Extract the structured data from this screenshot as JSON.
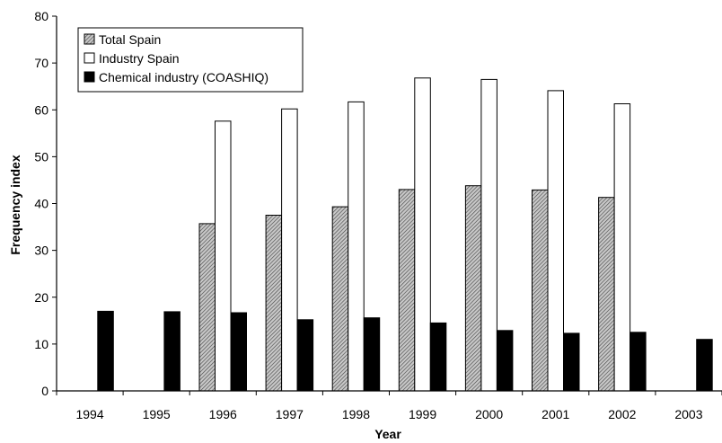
{
  "chart_data": {
    "type": "bar",
    "categories": [
      "1994",
      "1995",
      "1996",
      "1997",
      "1998",
      "1999",
      "2000",
      "2001",
      "2002",
      "2003"
    ],
    "series": [
      {
        "name": "Total Spain",
        "values": [
          null,
          null,
          35.7,
          37.5,
          39.3,
          43.0,
          43.8,
          42.9,
          41.3,
          null
        ],
        "color": "#9a9a9a",
        "pattern": "diagonal-hatch"
      },
      {
        "name": "Industry Spain",
        "values": [
          null,
          null,
          57.6,
          60.2,
          61.7,
          66.8,
          66.5,
          64.1,
          61.3,
          null
        ],
        "color": "#ffffff"
      },
      {
        "name": "Chemical industry (COASHIQ)",
        "values": [
          17.0,
          16.9,
          16.7,
          15.2,
          15.6,
          14.5,
          12.9,
          12.3,
          12.5,
          11.0
        ],
        "color": "#000000"
      }
    ],
    "title": "",
    "xlabel": "Year",
    "ylabel": "Frequency index",
    "ylim": [
      0,
      80
    ],
    "yticks": [
      "0",
      "10",
      "20",
      "30",
      "40",
      "50",
      "60",
      "70",
      "80"
    ],
    "grid": false,
    "legend_position": "top-left"
  }
}
